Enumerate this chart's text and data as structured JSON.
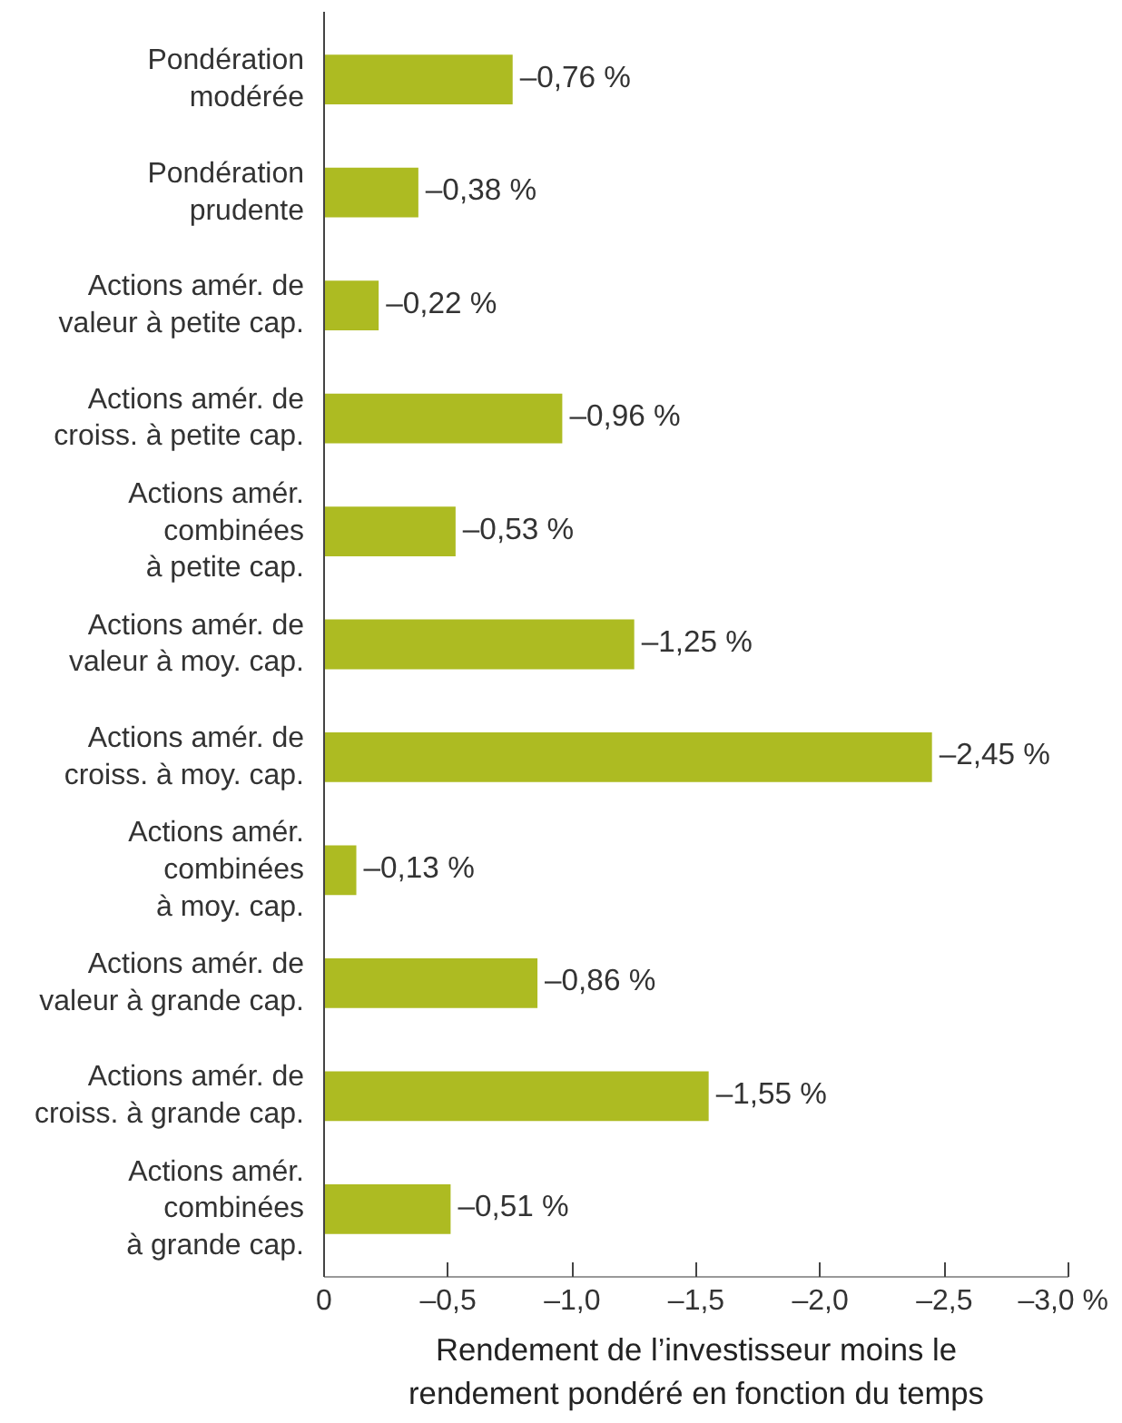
{
  "chart_data": {
    "type": "bar",
    "orientation": "horizontal",
    "categories": [
      "Pondération\nmodérée",
      "Pondération\nprudente",
      "Actions amér. de\nvaleur à petite cap.",
      "Actions amér. de\ncroiss. à petite cap.",
      "Actions amér.\ncombinées\nà petite cap.",
      "Actions amér. de\nvaleur à moy. cap.",
      "Actions amér. de\ncroiss. à moy. cap.",
      "Actions amér.\ncombinées\nà moy. cap.",
      "Actions amér. de\nvaleur à grande cap.",
      "Actions amér. de\ncroiss. à grande cap.",
      "Actions amér.\ncombinées\nà grande cap."
    ],
    "values": [
      -0.76,
      -0.38,
      -0.22,
      -0.96,
      -0.53,
      -1.25,
      -2.45,
      -0.13,
      -0.86,
      -1.55,
      -0.51
    ],
    "value_labels": [
      "–0,76 %",
      "–0,38 %",
      "–0,22 %",
      "–0,96 %",
      "–0,53 %",
      "–1,25 %",
      "–2,45 %",
      "–0,13 %",
      "–0,86 %",
      "–1,55 %",
      "–0,51 %"
    ],
    "color": "#adbb22",
    "xlabel": "Rendement de l’investisseur moins le\nrendement pondéré en fonction du temps",
    "xlim": [
      0,
      -3.0
    ],
    "xticks": [
      0,
      {
        "value": -0.5,
        "label": "–0,5"
      },
      {
        "value": -1.0,
        "label": "–1,0"
      },
      {
        "value": -1.5,
        "label": "–1,5"
      },
      {
        "value": -2.0,
        "label": "–2,0"
      },
      {
        "value": -2.5,
        "label": "–2,5"
      },
      {
        "value": -3.0,
        "label": "–3,0 %"
      }
    ],
    "grid": false
  }
}
